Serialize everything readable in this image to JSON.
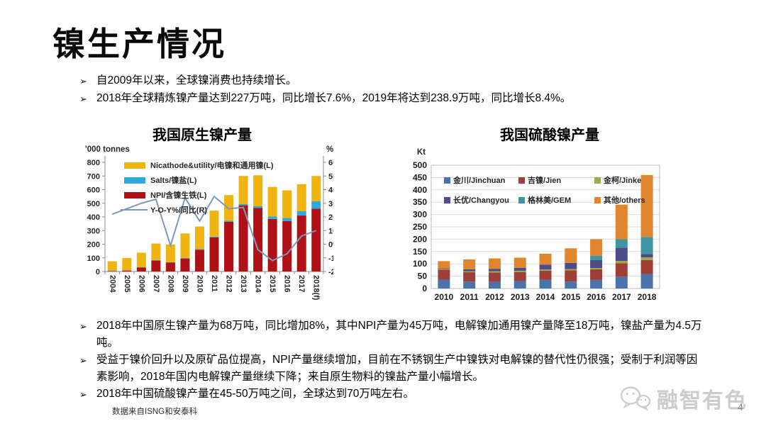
{
  "slide": {
    "title": "镍生产情况",
    "bullet_marker": "➢",
    "top_bullets": [
      "自2009年以来，全球镍消费也持续增长。",
      "2018年全球精炼镍产量达到227万吨，同比增长7.6%，2019年将达到238.9万吨，同比增长8.4%。"
    ],
    "bottom_bullets": [
      "2018年中国原生镍产量为68万吨，同比增加8%，其中NPI产量为45万吨，电解镍加通用镍产量降至18万吨，镍盐产量为4.5万吨。",
      "受益于镍价回升以及原矿品位提高，NPI产量继续增加，目前在不锈钢生产中镍铁对电解镍的替代性仍很强；受制于利润等因素影响，2018年国内电解镍产量继续下降；来自原生物料的镍盐产量小幅增长。",
      "2018年中国硫酸镍产量在45-50万吨之间，全球达到70万吨左右。"
    ],
    "source_note": "数据来自ISNG和安泰科",
    "page_number": "4",
    "watermark_text": "融智有色"
  },
  "chart_data": [
    {
      "type": "bar",
      "subtype": "stacked-bar-with-line",
      "title": "我国原生镍产量",
      "ylabel_left": "'000 tonnes",
      "ylabel_right": "%",
      "ylim_left": [
        0,
        800
      ],
      "ytick_step_left": 100,
      "ylim_right": [
        -20,
        60
      ],
      "ytick_step_right": 10,
      "grid": false,
      "legend_position": "top-left-inside",
      "categories": [
        "2004",
        "2005",
        "2006",
        "2007",
        "2008",
        "2009",
        "2010",
        "2011",
        "2012",
        "2013",
        "2014",
        "2015",
        "2016",
        "2017",
        "2018(f)"
      ],
      "series": [
        {
          "name": "NPI/含镍生铁(L)",
          "color": "#b01116",
          "axis": "left",
          "values": [
            3,
            7,
            30,
            80,
            65,
            95,
            160,
            250,
            365,
            485,
            465,
            385,
            370,
            410,
            460
          ]
        },
        {
          "name": "Salts/镍盐(L)",
          "color": "#2fa9dd",
          "axis": "left",
          "values": [
            2,
            2,
            3,
            3,
            3,
            4,
            5,
            6,
            8,
            10,
            13,
            18,
            22,
            32,
            55
          ]
        },
        {
          "name": "Nicathode&utility/电镍和通用镍(L)",
          "color": "#f0b410",
          "axis": "left",
          "values": [
            70,
            90,
            105,
            122,
            130,
            180,
            165,
            190,
            187,
            205,
            227,
            217,
            203,
            198,
            185
          ]
        }
      ],
      "line_series": {
        "name": "Y-O-Y%/同比(R)",
        "color": "#7b99bc",
        "axis": "right",
        "values": [
          22,
          26,
          30,
          33,
          -1,
          34,
          17,
          35,
          26,
          27,
          -4,
          -12,
          -7,
          6,
          10
        ]
      },
      "legend": [
        "Nicathode&utility/电镍和通用镍(L)",
        "Salts/镍盐(L)",
        "NPI/含镍生铁(L)",
        "Y-O-Y%/同比(R)"
      ]
    },
    {
      "type": "bar",
      "subtype": "stacked-bar",
      "title": "我国硫酸镍产量",
      "ylabel": "Kt",
      "ylim": [
        0,
        500
      ],
      "ytick_step": 50,
      "grid": true,
      "legend_position": "top-inside-two-rows",
      "categories": [
        "2010",
        "2011",
        "2012",
        "2013",
        "2014",
        "2015",
        "2016",
        "2017",
        "2018"
      ],
      "series": [
        {
          "name": "金川/Jinchuan",
          "color": "#4a74a9",
          "values": [
            36,
            28,
            27,
            30,
            35,
            28,
            35,
            48,
            59
          ]
        },
        {
          "name": "吉镍/Jien",
          "color": "#9e3f38",
          "values": [
            41,
            38,
            38,
            37,
            37,
            46,
            43,
            54,
            56
          ]
        },
        {
          "name": "金柯/Jinke",
          "color": "#9da84f",
          "values": [
            3,
            4,
            5,
            5,
            5,
            5,
            5,
            10,
            11
          ]
        },
        {
          "name": "长优/Changyou",
          "color": "#4d4c86",
          "values": [
            2,
            8,
            10,
            12,
            20,
            25,
            32,
            53,
            14
          ]
        },
        {
          "name": "格林美/GEM",
          "color": "#3e95a0",
          "values": [
            0,
            0,
            0,
            0,
            0,
            0,
            18,
            35,
            69
          ]
        },
        {
          "name": "其他/others",
          "color": "#e0862e",
          "values": [
            29,
            40,
            42,
            41,
            44,
            59,
            67,
            140,
            251
          ]
        }
      ],
      "legend_rows": [
        [
          "金川/Jinchuan",
          "吉镍/Jien",
          "金柯/Jinke"
        ],
        [
          "长优/Changyou",
          "格林美/GEM",
          "其他/others"
        ]
      ]
    }
  ]
}
